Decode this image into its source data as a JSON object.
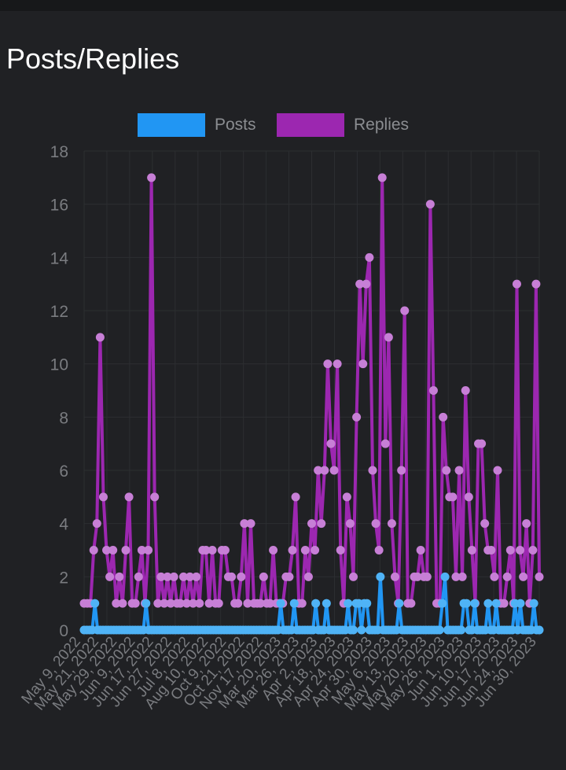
{
  "page": {
    "title": "Posts/Replies"
  },
  "colors": {
    "posts": "#2196f3",
    "replies": "#9c27b0",
    "grid": "#2c2e31",
    "tick": "#7a7c80",
    "background": "#202124"
  },
  "chart_data": {
    "type": "line",
    "title": "Posts/Replies",
    "ylim": [
      0,
      18
    ],
    "yticks": [
      0,
      2,
      4,
      6,
      8,
      10,
      12,
      14,
      16,
      18
    ],
    "legend_position": "top-center",
    "tick_labels": [
      "May 9, 2022",
      "May 21, 2022",
      "May 29, 2022",
      "Jun 9, 2022",
      "Jun 17, 2022",
      "Jun 27, 2022",
      "Jul 8, 2022",
      "Aug 10, 2022",
      "Oct 9, 2022",
      "Oct 21, 2022",
      "Nov 17, 2022",
      "Mar 20, 2023",
      "Mar 26, 2023",
      "Apr 2, 2023",
      "Apr 18, 2023",
      "Apr 24, 2023",
      "Apr 30, 2023",
      "May 6, 2023",
      "May 13, 2023",
      "May 20, 2023",
      "May 26, 2023",
      "Jun 1, 2023",
      "Jun 10, 2023",
      "Jun 17, 2023",
      "Jun 24, 2023",
      "Jun 30, 2023"
    ],
    "series": [
      {
        "name": "Posts",
        "color": "#2196f3",
        "values": [
          0,
          0,
          0,
          0,
          1,
          0,
          0,
          0,
          0,
          0,
          0,
          0,
          0,
          0,
          0,
          0,
          0,
          0,
          0,
          0,
          0,
          0,
          0,
          1,
          0,
          0,
          0,
          0,
          0,
          0,
          0,
          0,
          0,
          0,
          0,
          0,
          0,
          0,
          0,
          0,
          0,
          0,
          0,
          0,
          0,
          0,
          0,
          0,
          0,
          0,
          0,
          0,
          0,
          0,
          0,
          0,
          0,
          0,
          0,
          0,
          0,
          0,
          0,
          0,
          0,
          0,
          0,
          0,
          0,
          0,
          0,
          0,
          0,
          1,
          0,
          0,
          0,
          0,
          1,
          0,
          0,
          0,
          0,
          0,
          0,
          0,
          1,
          0,
          0,
          0,
          1,
          0,
          0,
          0,
          0,
          0,
          0,
          0,
          1,
          0,
          0,
          1,
          1,
          0,
          1,
          1,
          0,
          0,
          0,
          0,
          2,
          0,
          0,
          0,
          0,
          0,
          0,
          1,
          0,
          0,
          0,
          0,
          0,
          0,
          0,
          0,
          0,
          0,
          0,
          0,
          0,
          0,
          0,
          1,
          2,
          0,
          0,
          0,
          0,
          0,
          0,
          1,
          1,
          0,
          0,
          1,
          0,
          0,
          0,
          0,
          1,
          0,
          0,
          1,
          0,
          0,
          0,
          0,
          0,
          0,
          1,
          0,
          1,
          0,
          0,
          0,
          0,
          1,
          0,
          0
        ]
      },
      {
        "name": "Replies",
        "color": "#9c27b0",
        "values": [
          1,
          1,
          1,
          3,
          4,
          11,
          5,
          3,
          2,
          3,
          1,
          2,
          1,
          3,
          5,
          1,
          1,
          2,
          3,
          1,
          3,
          17,
          5,
          1,
          2,
          1,
          2,
          1,
          2,
          1,
          1,
          2,
          1,
          2,
          1,
          2,
          1,
          3,
          3,
          1,
          3,
          1,
          1,
          3,
          3,
          2,
          2,
          1,
          1,
          2,
          4,
          1,
          4,
          1,
          1,
          1,
          2,
          1,
          1,
          3,
          1,
          1,
          1,
          2,
          2,
          3,
          5,
          1,
          1,
          3,
          2,
          4,
          3,
          6,
          4,
          6,
          10,
          7,
          6,
          10,
          3,
          1,
          5,
          4,
          2,
          8,
          13,
          10,
          13,
          14,
          6,
          4,
          3,
          17,
          7,
          11,
          4,
          2,
          1,
          6,
          12,
          1,
          1,
          2,
          2,
          3,
          2,
          2,
          16,
          9,
          1,
          1,
          8,
          6,
          5,
          5,
          2,
          6,
          2,
          9,
          5,
          3,
          1,
          7,
          7,
          4,
          3,
          3,
          2,
          6,
          1,
          1,
          2,
          3,
          1,
          13,
          3,
          2,
          4,
          1,
          3,
          13,
          2
        ]
      }
    ]
  }
}
